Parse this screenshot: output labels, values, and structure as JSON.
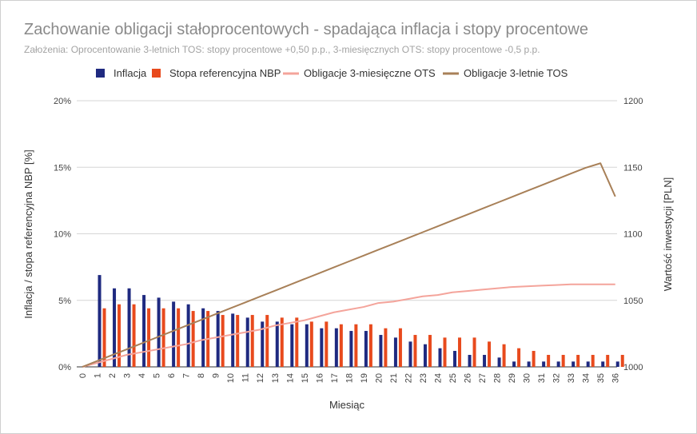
{
  "chart_data": {
    "type": "bar",
    "title": "Zachowanie obligacji stałoprocentowych - spadająca inflacja i stopy procentowe",
    "subtitle": "Założenia: Oprocentowanie 3-letnich TOS: stopy procentowe +0,50 p.p., 3-miesięcznych OTS: stopy procentowe -0,5 p.p.",
    "xlabel": "Miesiąc",
    "ylabel_left": "Inflacja / stopa referencyjna NBP [%]",
    "ylabel_right": "Wartość inwestycji [PLN]",
    "legend_position": "top",
    "grid": true,
    "ylim_left": [
      0,
      20
    ],
    "ylim_right": [
      1000,
      1200
    ],
    "y_ticks_left": [
      "0%",
      "5%",
      "10%",
      "15%",
      "20%"
    ],
    "y_ticks_right": [
      "1000",
      "1050",
      "1100",
      "1150",
      "1200"
    ],
    "categories": [
      "0",
      "1",
      "2",
      "3",
      "4",
      "5",
      "6",
      "7",
      "8",
      "9",
      "10",
      "11",
      "12",
      "13",
      "14",
      "15",
      "16",
      "17",
      "18",
      "19",
      "20",
      "21",
      "22",
      "23",
      "24",
      "25",
      "26",
      "27",
      "28",
      "29",
      "30",
      "31",
      "32",
      "33",
      "34",
      "35",
      "36"
    ],
    "series": [
      {
        "name": "Inflacja",
        "type": "bar",
        "axis": "left",
        "color": "#1f2a80",
        "values": [
          0,
          6.9,
          5.9,
          5.9,
          5.4,
          5.2,
          4.9,
          4.7,
          4.4,
          4.2,
          4.0,
          3.7,
          3.4,
          3.4,
          3.2,
          3.2,
          2.9,
          2.9,
          2.7,
          2.7,
          2.4,
          2.2,
          1.9,
          1.7,
          1.4,
          1.2,
          0.9,
          0.9,
          0.7,
          0.4,
          0.4,
          0.4,
          0.4,
          0.4,
          0.4,
          0.4,
          0.4
        ]
      },
      {
        "name": "Stopa referencyjna NBP",
        "type": "bar",
        "axis": "left",
        "color": "#e84a1d",
        "values": [
          0,
          4.4,
          4.7,
          4.7,
          4.4,
          4.4,
          4.4,
          4.2,
          4.2,
          3.9,
          3.9,
          3.9,
          3.9,
          3.7,
          3.7,
          3.4,
          3.4,
          3.2,
          3.2,
          3.2,
          2.9,
          2.9,
          2.4,
          2.4,
          2.2,
          2.2,
          2.2,
          1.9,
          1.7,
          1.4,
          1.2,
          0.9,
          0.9,
          0.9,
          0.9,
          0.9,
          0.9
        ]
      },
      {
        "name": "Obligacje 3-miesięczne OTS",
        "type": "line",
        "axis": "right",
        "color": "#f4a49b",
        "values": [
          1000,
          1003,
          1006,
          1009,
          1011,
          1013,
          1015,
          1017,
          1020,
          1022,
          1024,
          1026,
          1028,
          1031,
          1033,
          1035,
          1038,
          1041,
          1043,
          1045,
          1048,
          1049,
          1051,
          1053,
          1054,
          1056,
          1057,
          1058,
          1059,
          1060,
          1060.5,
          1061,
          1061.5,
          1062,
          1062,
          1062,
          1062
        ]
      },
      {
        "name": "Obligacje 3-letnie TOS",
        "type": "line",
        "axis": "right",
        "color": "#a88058",
        "values": [
          1000,
          1004.4,
          1008.8,
          1013.2,
          1017.6,
          1022,
          1026.4,
          1030.8,
          1035.2,
          1039.6,
          1044,
          1048.4,
          1052.8,
          1057.2,
          1061.6,
          1066,
          1070.4,
          1074.8,
          1079.2,
          1083.6,
          1088,
          1092.4,
          1096.8,
          1101.2,
          1105.6,
          1110,
          1114.4,
          1118.8,
          1123.2,
          1127.6,
          1132,
          1136.4,
          1140.8,
          1145.2,
          1149.6,
          1153,
          1128
        ]
      }
    ]
  }
}
